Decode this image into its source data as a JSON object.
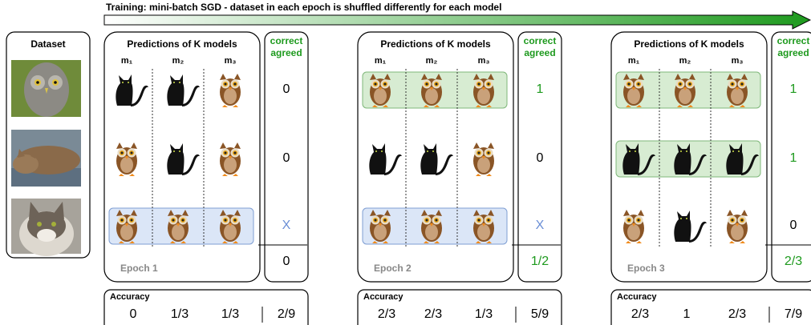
{
  "title": "Training: mini-batch SGD - dataset in each epoch is shuffled differently for each model",
  "dataset": {
    "label": "Dataset"
  },
  "epochs": [
    {
      "header": "Predictions of K models",
      "models": [
        "m₁",
        "m₂",
        "m₃"
      ],
      "correct_header": [
        "correct",
        "agreed"
      ],
      "correct": [
        "0",
        "0",
        "X"
      ],
      "total": "0",
      "label": "Epoch 1",
      "accuracy": {
        "label": "Accuracy",
        "values": [
          "0",
          "1/3",
          "1/3"
        ],
        "overall": "2/9"
      }
    },
    {
      "header": "Predictions of K models",
      "models": [
        "m₁",
        "m₂",
        "m₃"
      ],
      "correct_header": [
        "correct",
        "agreed"
      ],
      "correct": [
        "1",
        "0",
        "X"
      ],
      "total": "1/2",
      "label": "Epoch 2",
      "accuracy": {
        "label": "Accuracy",
        "values": [
          "2/3",
          "2/3",
          "1/3"
        ],
        "overall": "5/9"
      }
    },
    {
      "header": "Predictions of K models",
      "models": [
        "m₁",
        "m₂",
        "m₃"
      ],
      "correct_header": [
        "correct",
        "agreed"
      ],
      "correct": [
        "1",
        "1",
        "0"
      ],
      "total": "2/3",
      "label": "Epoch 3",
      "accuracy": {
        "label": "Accuracy",
        "values": [
          "2/3",
          "1",
          "2/3"
        ],
        "overall": "7/9"
      }
    }
  ]
}
